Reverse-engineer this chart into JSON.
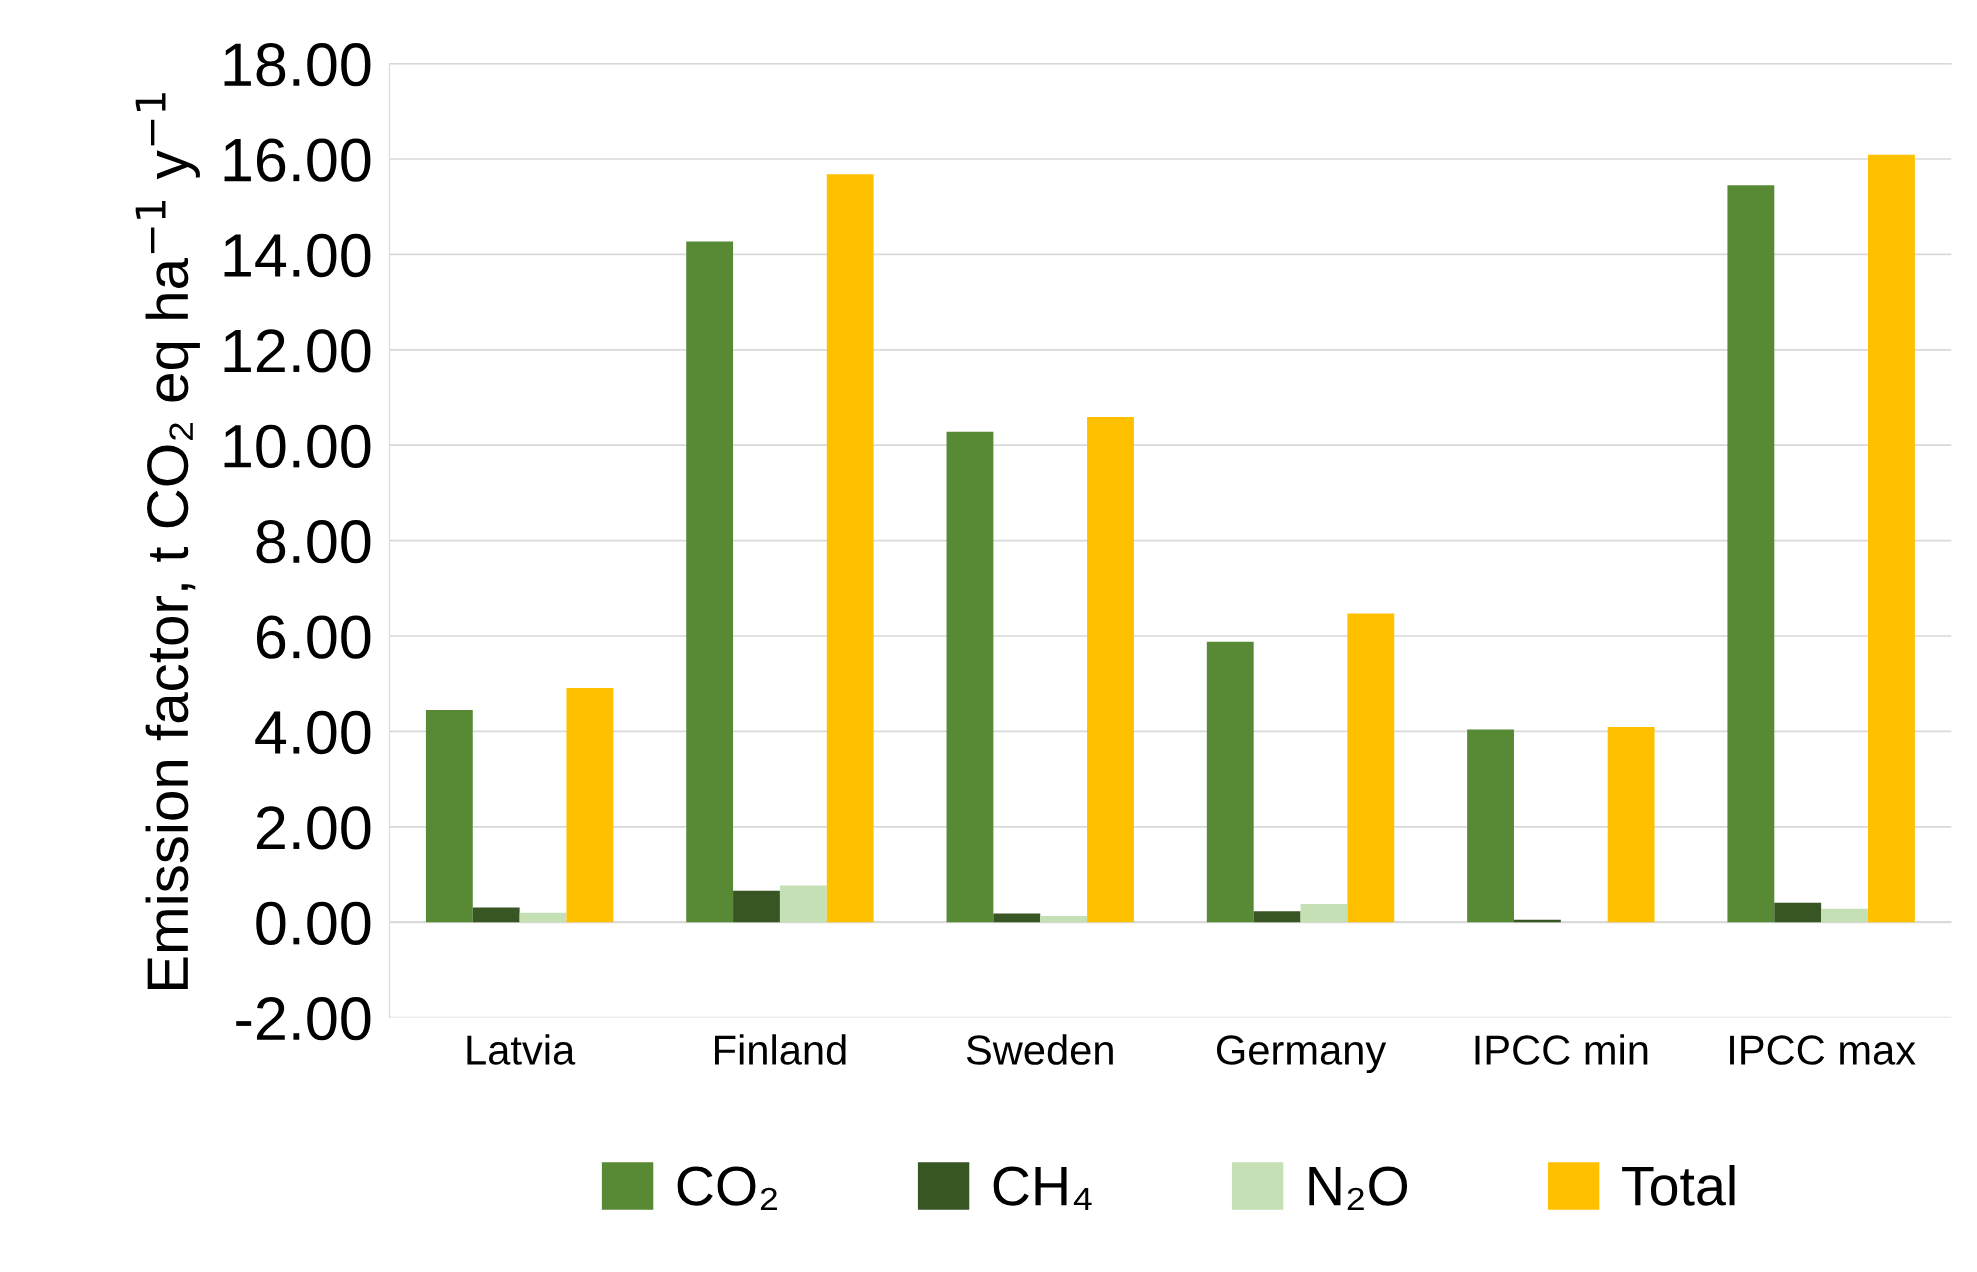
{
  "chart_data": {
    "type": "bar",
    "ylabel": "Emission factor, t CO₂ eq ha$^{−1}$ y$^{−1}$",
    "categories": [
      "Latvia",
      "Finland",
      "Sweden",
      "Germany",
      "IPCC min",
      "IPCC max"
    ],
    "series": [
      {
        "name": "CO₂",
        "color": "#588a36",
        "values": [
          4.45,
          14.27,
          10.28,
          5.88,
          4.04,
          15.45
        ]
      },
      {
        "name": "CH₄",
        "color": "#375623",
        "values": [
          0.31,
          0.66,
          0.18,
          0.23,
          0.05,
          0.41
        ]
      },
      {
        "name": "N₂O",
        "color": "#c5e0b4",
        "values": [
          0.2,
          0.77,
          0.13,
          0.38,
          0.0,
          0.28
        ]
      },
      {
        "name": "Total",
        "color": "#ffc000",
        "values": [
          4.91,
          15.68,
          10.59,
          6.47,
          4.09,
          16.09
        ]
      }
    ],
    "ylim": [
      -2,
      18
    ],
    "yticks": [
      {
        "value": -2,
        "label": "-2.00"
      },
      {
        "value": 0,
        "label": "0.00"
      },
      {
        "value": 2,
        "label": "2.00"
      },
      {
        "value": 4,
        "label": "4.00"
      },
      {
        "value": 6,
        "label": "6.00"
      },
      {
        "value": 8,
        "label": "8.00"
      },
      {
        "value": 10,
        "label": "10.00"
      },
      {
        "value": 12,
        "label": "12.00"
      },
      {
        "value": 14,
        "label": "14.00"
      },
      {
        "value": 16,
        "label": "16.00"
      },
      {
        "value": 18,
        "label": "18.00"
      }
    ],
    "grid": "y",
    "legend": "bottom"
  }
}
